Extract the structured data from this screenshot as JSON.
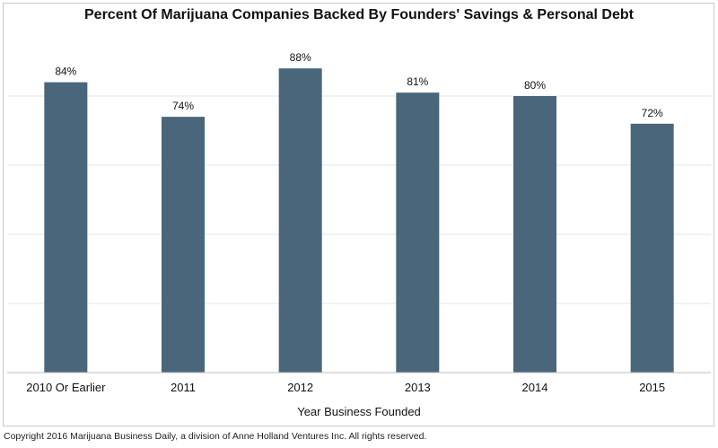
{
  "chart_data": {
    "type": "bar",
    "title": "Percent Of Marijuana Companies Backed By Founders' Savings & Personal Debt",
    "xlabel": "Year Business Founded",
    "ylabel": "",
    "categories": [
      "2010 Or Earlier",
      "2011",
      "2012",
      "2013",
      "2014",
      "2015"
    ],
    "values": [
      84,
      74,
      88,
      81,
      80,
      72
    ],
    "data_labels": [
      "84%",
      "74%",
      "88%",
      "81%",
      "80%",
      "72%"
    ],
    "ylim": [
      0,
      100
    ],
    "grid": true,
    "bar_color": "#4a667a",
    "legend": "none"
  },
  "footer": {
    "copyright": "Copyright 2016 Marijuana Business Daily, a division of Anne Holland Ventures Inc. All rights reserved."
  }
}
